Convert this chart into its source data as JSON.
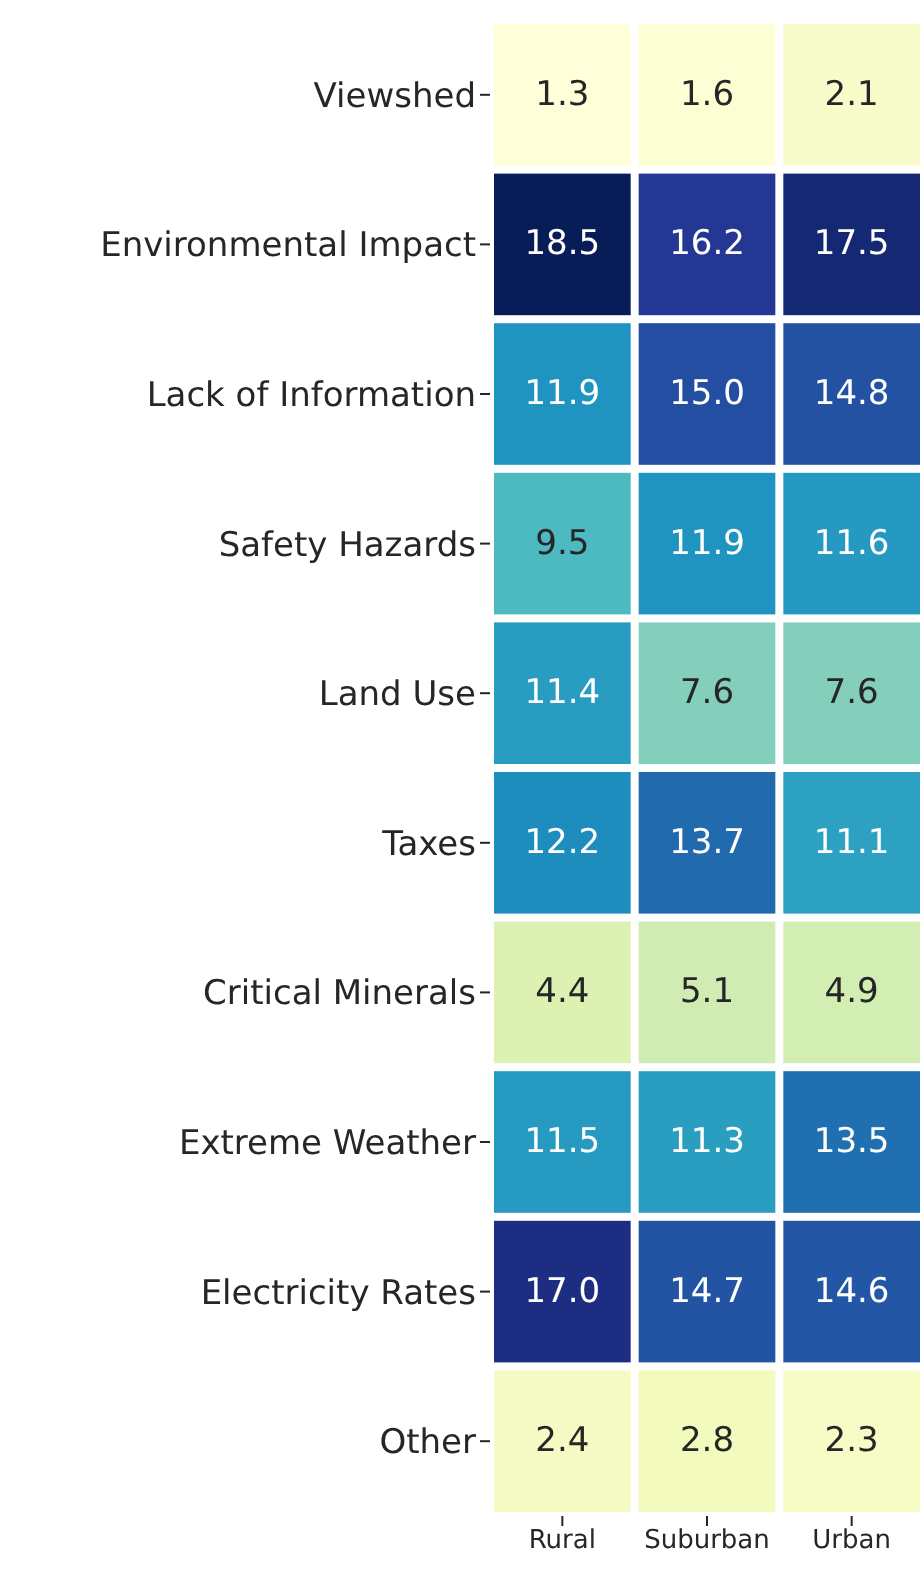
{
  "chart_data": {
    "type": "heatmap",
    "categories": [
      "Rural",
      "Suburban",
      "Urban"
    ],
    "y_categories": [
      "Viewshed",
      "Environmental Impact",
      "Lack of Information",
      "Safety Hazards",
      "Land Use",
      "Taxes",
      "Critical Minerals",
      "Extreme Weather",
      "Electricity Rates",
      "Other"
    ],
    "cells": [
      [
        1.3,
        1.6,
        2.1
      ],
      [
        18.5,
        16.2,
        17.5
      ],
      [
        11.9,
        15.0,
        14.8
      ],
      [
        9.5,
        11.9,
        11.6
      ],
      [
        11.4,
        7.6,
        7.6
      ],
      [
        12.2,
        13.7,
        11.1
      ],
      [
        4.4,
        5.1,
        4.9
      ],
      [
        11.5,
        11.3,
        13.5
      ],
      [
        17.0,
        14.7,
        14.6
      ],
      [
        2.4,
        2.8,
        2.3
      ]
    ],
    "cell_labels": [
      [
        "1.3",
        "1.6",
        "2.1"
      ],
      [
        "18.5",
        "16.2",
        "17.5"
      ],
      [
        "11.9",
        "15.0",
        "14.8"
      ],
      [
        "9.5",
        "11.9",
        "11.6"
      ],
      [
        "11.4",
        "7.6",
        "7.6"
      ],
      [
        "12.2",
        "13.7",
        "11.1"
      ],
      [
        "4.4",
        "5.1",
        "4.9"
      ],
      [
        "11.5",
        "11.3",
        "13.5"
      ],
      [
        "17.0",
        "14.7",
        "14.6"
      ],
      [
        "2.4",
        "2.8",
        "2.3"
      ]
    ]
  }
}
